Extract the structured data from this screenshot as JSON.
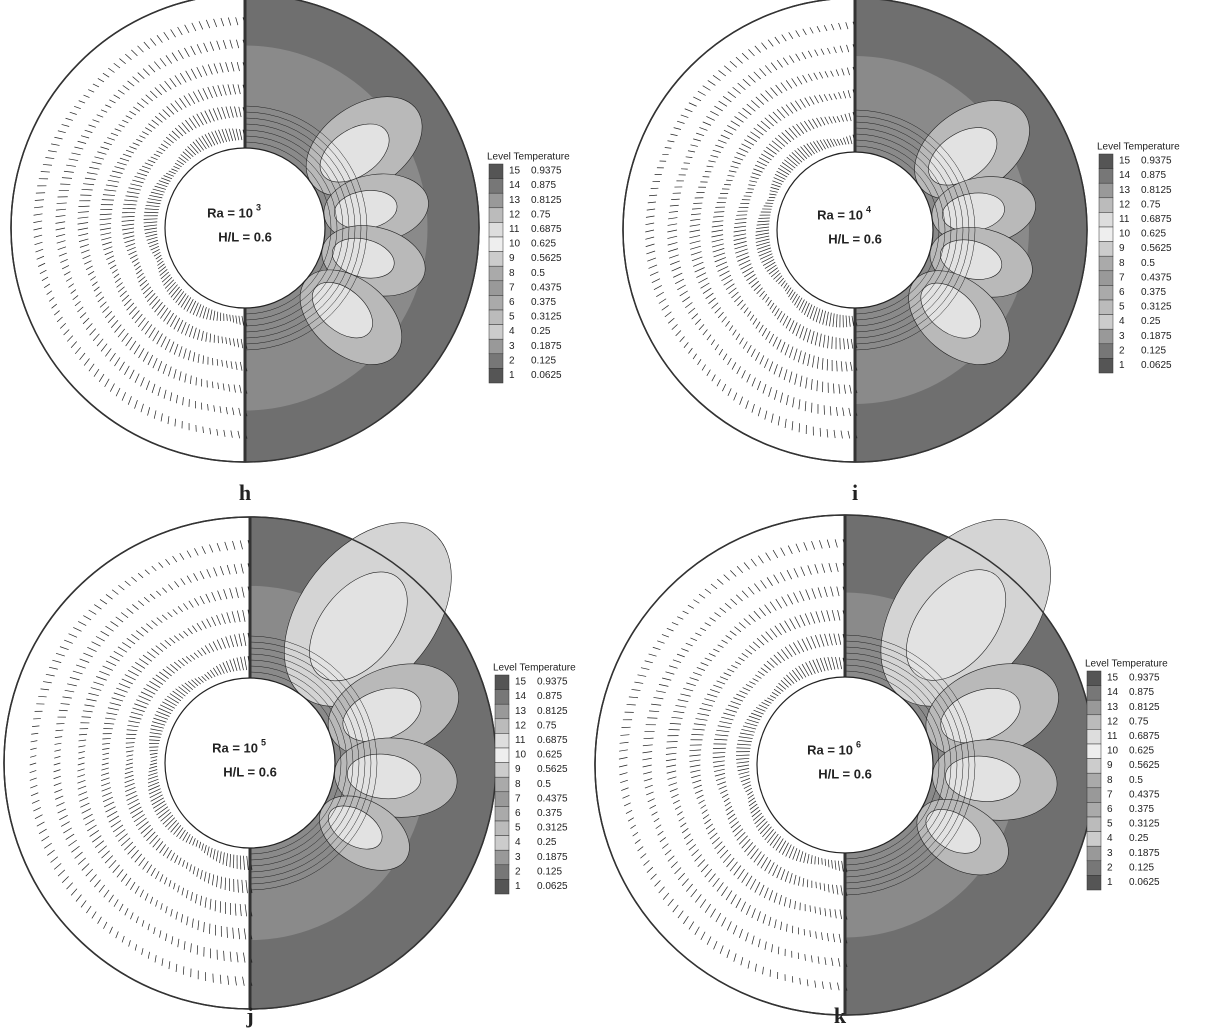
{
  "legend": {
    "title": "Level Temperature",
    "levels": [
      [
        15,
        0.9375
      ],
      [
        14,
        0.875
      ],
      [
        13,
        0.8125
      ],
      [
        12,
        0.75
      ],
      [
        11,
        0.6875
      ],
      [
        10,
        0.625
      ],
      [
        9,
        0.5625
      ],
      [
        8,
        0.5
      ],
      [
        7,
        0.4375
      ],
      [
        6,
        0.375
      ],
      [
        5,
        0.3125
      ],
      [
        4,
        0.25
      ],
      [
        3,
        0.1875
      ],
      [
        2,
        0.125
      ],
      [
        1,
        0.0625
      ]
    ]
  },
  "panels": [
    {
      "label": "h",
      "ra": "Ra = 10",
      "ra_exponent": "3",
      "ratio": "H/L = 0.6"
    },
    {
      "label": "i",
      "ra": "Ra = 10",
      "ra_exponent": "4",
      "ratio": "H/L = 0.6"
    },
    {
      "label": "j",
      "ra": "Ra = 10",
      "ra_exponent": "5",
      "ratio": "H/L = 0.6"
    },
    {
      "label": "k",
      "ra": "Ra = 10",
      "ra_exponent": "6",
      "ratio": "H/L = 0.6"
    }
  ]
}
